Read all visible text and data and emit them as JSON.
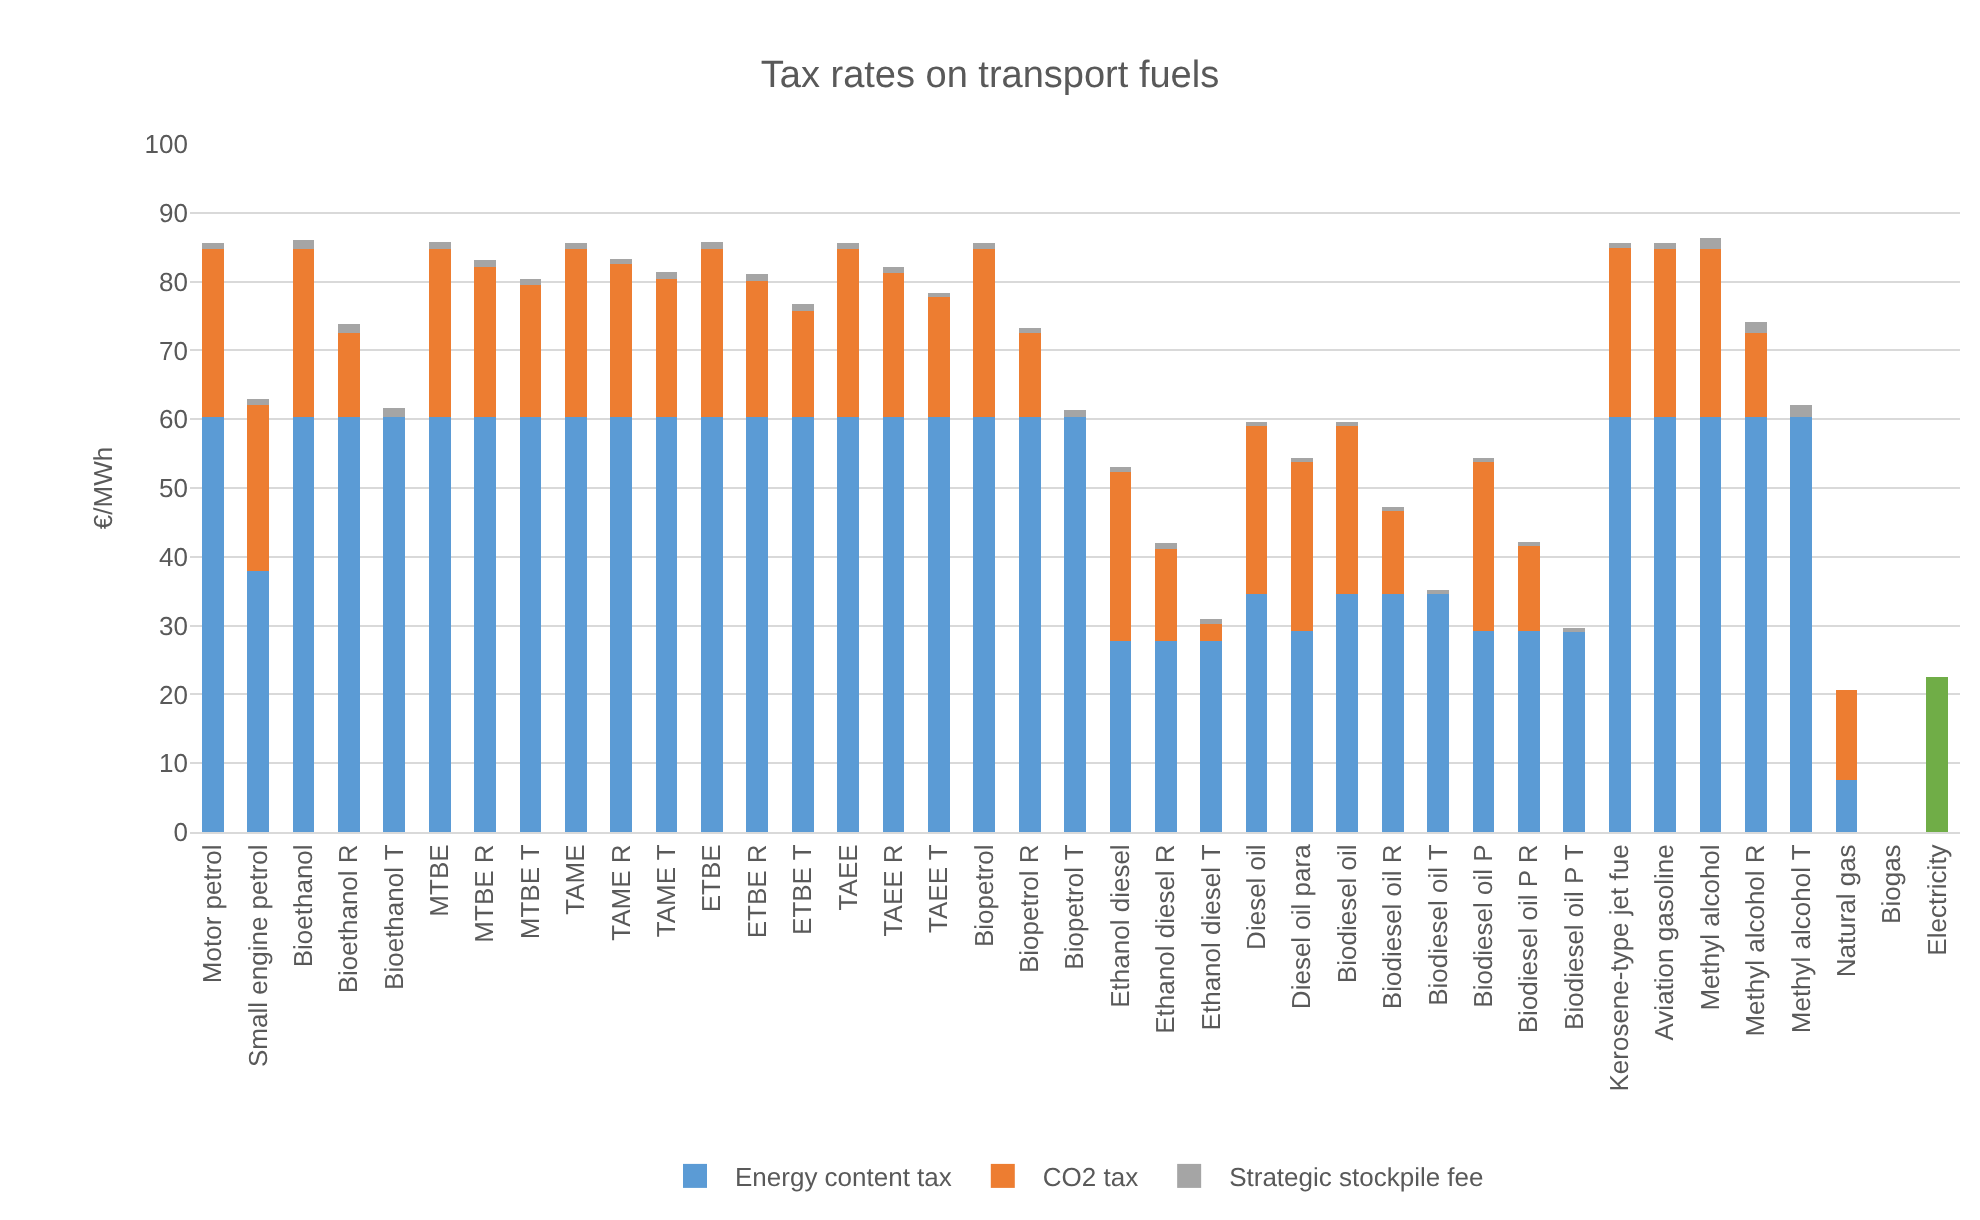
{
  "chart_data": {
    "type": "bar",
    "title": "Tax rates on transport fuels",
    "ylabel": "€/MWh",
    "stacked": true,
    "grid": "y",
    "legend": "bottom",
    "categories": [
      "Motor petrol",
      "Small engine petrol",
      "Bioethanol",
      "Bioethanol R",
      "Bioethanol T",
      "MTBE",
      "MTBE R",
      "MTBE T",
      "TAME",
      "TAME R",
      "TAME T",
      "ETBE",
      "ETBE R",
      "ETBE T",
      "TAEE",
      "TAEE R",
      "TAEE T",
      "Biopetrol",
      "Biopetrol R",
      "Biopetrol T",
      "Ethanol diesel",
      "Ethanol diesel R",
      "Ethanol diesel T",
      "Diesel oil",
      "Diesel oil para",
      "Biodiesel oil",
      "Biodiesel oil R",
      "Biodiesel oil T",
      "Biodiesel oil P",
      "Biodiesel oil P R",
      "Biodiesel oil P T",
      "Kerosene-type jet fue",
      "Aviation gasoline",
      "Methyl alcohol",
      "Methyl alcohol R",
      "Methyl alcohol T",
      "Natural gas",
      "Biogas",
      "Electricity"
    ],
    "series": [
      {
        "name": "Energy content tax",
        "color": "#5b9bd5",
        "values": [
          60.3,
          38.0,
          60.3,
          60.3,
          60.3,
          60.3,
          60.3,
          60.3,
          60.3,
          60.3,
          60.3,
          60.3,
          60.3,
          60.3,
          60.3,
          60.3,
          60.3,
          60.3,
          60.3,
          60.3,
          27.8,
          27.8,
          27.8,
          34.6,
          29.2,
          34.6,
          34.6,
          34.6,
          29.2,
          29.2,
          29.2,
          60.3,
          60.3,
          60.3,
          60.3,
          60.3,
          7.6,
          null,
          null
        ]
      },
      {
        "name": "CO2 tax",
        "color": "#ed7d31",
        "values": [
          24.5,
          24.1,
          24.5,
          12.3,
          null,
          24.5,
          21.8,
          19.2,
          24.5,
          22.3,
          20.1,
          24.5,
          19.8,
          15.5,
          24.5,
          20.9,
          17.4,
          24.5,
          12.2,
          null,
          24.7,
          13.3,
          2.4,
          24.5,
          24.6,
          24.5,
          12.1,
          null,
          24.7,
          12.4,
          null,
          24.8,
          24.5,
          24.5,
          12.3,
          null,
          13.0,
          null,
          null
        ]
      },
      {
        "name": "Strategic stockpile fee",
        "color": "#a5a5a5",
        "values": [
          0.8,
          0.8,
          1.3,
          1.2,
          1.3,
          1.0,
          1.1,
          0.9,
          0.8,
          0.7,
          1.0,
          1.0,
          1.0,
          0.9,
          0.8,
          0.9,
          0.7,
          0.8,
          0.8,
          1.0,
          0.5,
          0.9,
          0.7,
          0.4,
          0.4,
          0.4,
          0.6,
          0.4,
          0.3,
          0.4,
          0.2,
          0.5,
          0.8,
          1.5,
          1.5,
          1.8,
          null,
          null,
          null
        ]
      },
      {
        "color": "#70ad47",
        "values": [
          null,
          null,
          null,
          null,
          null,
          null,
          null,
          null,
          null,
          null,
          null,
          null,
          null,
          null,
          null,
          null,
          null,
          null,
          null,
          null,
          null,
          null,
          null,
          null,
          null,
          null,
          null,
          null,
          null,
          null,
          null,
          null,
          null,
          null,
          null,
          null,
          null,
          null,
          22.5
        ]
      }
    ],
    "ylim": [
      0,
      100
    ],
    "yticks": [
      0,
      10,
      20,
      30,
      40,
      50,
      60,
      70,
      80,
      90,
      100
    ]
  }
}
